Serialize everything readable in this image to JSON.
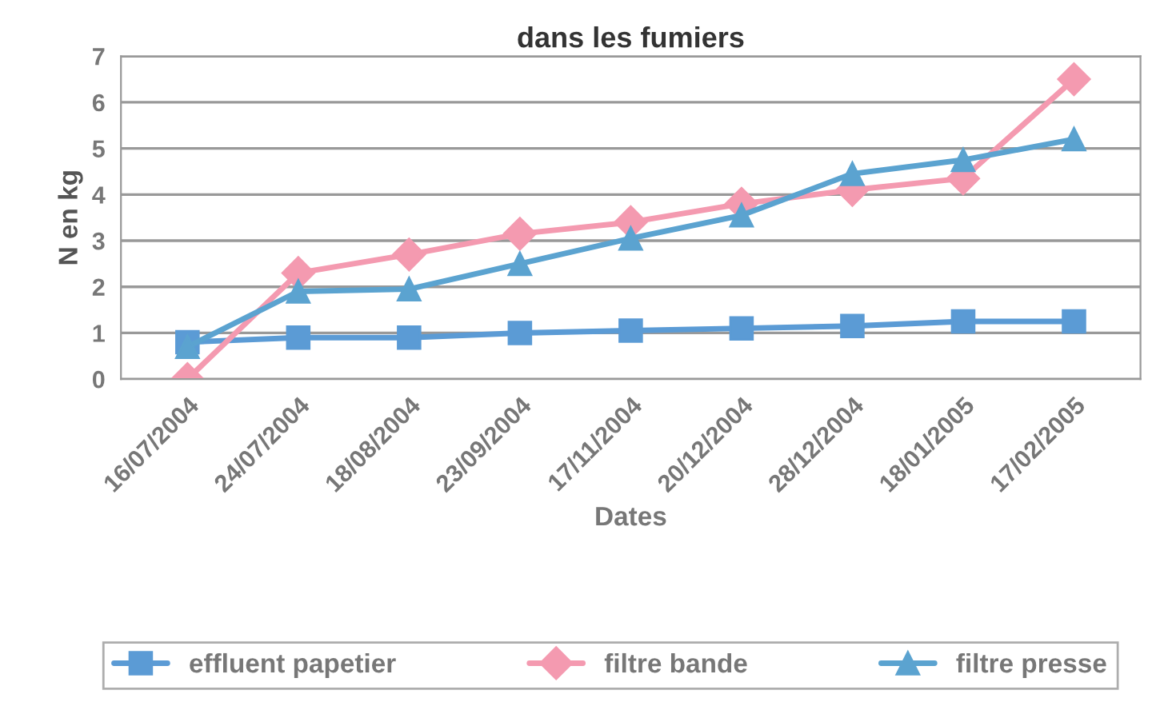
{
  "chart_data": {
    "type": "line",
    "title": "dans les fumiers",
    "xlabel": "Dates",
    "ylabel": "N en kg",
    "categories": [
      "16/07/2004",
      "24/07/2004",
      "18/08/2004",
      "23/09/2004",
      "17/11/2004",
      "20/12/2004",
      "28/12/2004",
      "18/01/2005",
      "17/02/2005"
    ],
    "series": [
      {
        "name": "effluent papetier",
        "color": "#5b9bd5",
        "marker": "square",
        "values": [
          0.8,
          0.9,
          0.9,
          1.0,
          1.05,
          1.1,
          1.15,
          1.25,
          1.25
        ]
      },
      {
        "name": "filtre bande",
        "color": "#f49ab0",
        "marker": "diamond",
        "values": [
          0,
          2.3,
          2.7,
          3.15,
          3.4,
          3.8,
          4.1,
          4.35,
          6.5
        ]
      },
      {
        "name": "filtre presse",
        "color": "#5ba3d0",
        "marker": "triangle",
        "values": [
          0.7,
          1.9,
          1.95,
          2.5,
          3.05,
          3.55,
          4.45,
          4.75,
          5.2
        ]
      }
    ],
    "ylim": [
      0,
      7
    ],
    "yticks": [
      0,
      1,
      2,
      3,
      4,
      5,
      6,
      7
    ],
    "grid": "y",
    "legend": "bottom",
    "line_style": "solid"
  }
}
